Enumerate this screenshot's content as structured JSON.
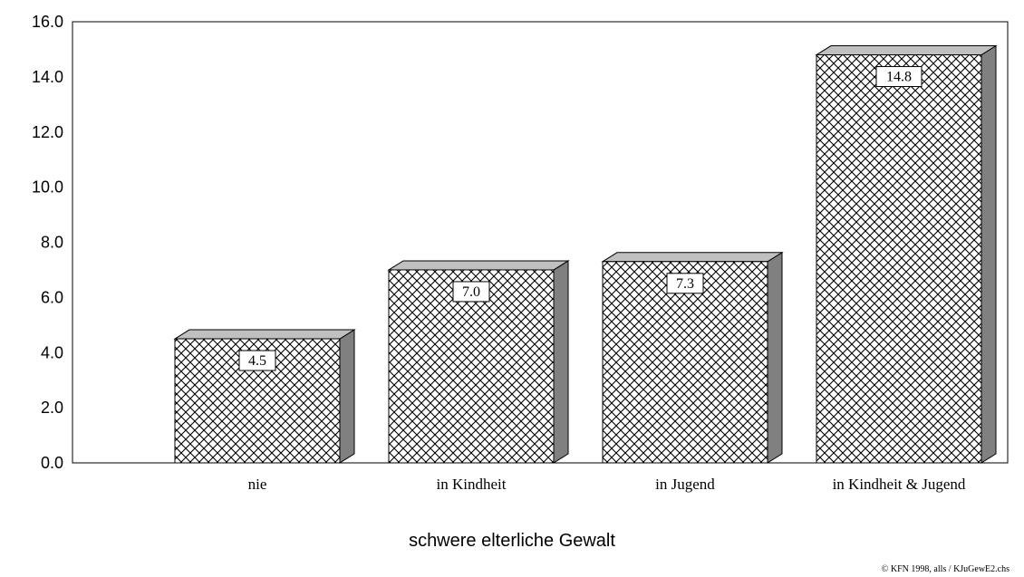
{
  "chart_data": {
    "type": "bar",
    "categories": [
      "nie",
      "in Kindheit",
      "in Jugend",
      "in Kindheit & Jugend"
    ],
    "values": [
      4.5,
      7.0,
      7.3,
      14.8
    ],
    "value_labels": [
      "4.5",
      "7.0",
      "7.3",
      "14.8"
    ],
    "yticks": [
      "0.0",
      "2.0",
      "4.0",
      "6.0",
      "8.0",
      "10.0",
      "12.0",
      "14.0",
      "16.0"
    ],
    "ylim": [
      0,
      16
    ],
    "title": "",
    "xlabel": "schwere elterliche Gewalt",
    "ylabel": "",
    "grid": false,
    "style": "3d-crosshatch",
    "colors": {
      "bar_face": "#ffffff",
      "hatch": "#000000",
      "bar_side": "#808080",
      "bar_top": "#c0c0c0"
    }
  },
  "source_note": "© KFN 1998, alls / KJuGewE2.chs"
}
